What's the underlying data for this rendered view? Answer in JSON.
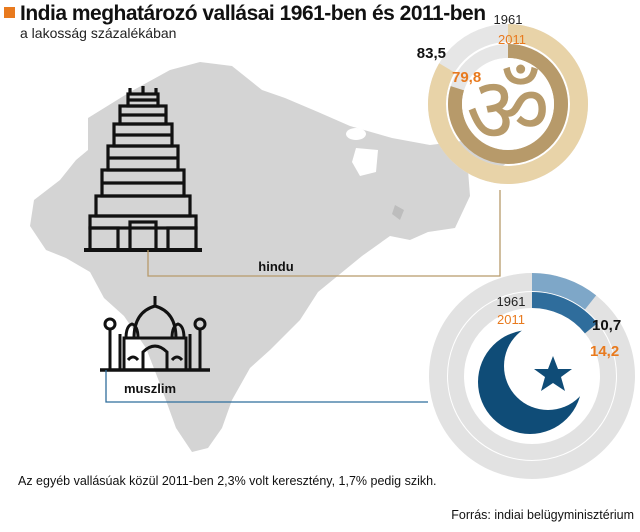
{
  "header": {
    "title": "India meghatározó vallásai 1961-ben és 2011-ben",
    "subtitle": "a lakosság százalékában"
  },
  "footnote": "Az egyéb vallásúak közül 2011-ben 2,3% volt keresztény, 1,7% pedig szikh.",
  "source": "Forrás: indiai belügyminisztérium",
  "colors": {
    "accent": "#e87a1e",
    "hindu_1961": "#e8d3a8",
    "hindu_2011": "#b79a6a",
    "muslim_1961": "#7ea7c8",
    "muslim_2011": "#2f6d9c",
    "muslim_icon": "#0f4c77",
    "ring_bg": "#e2e2e2",
    "map": "#d4d4d4"
  },
  "chart_data": [
    {
      "type": "donut",
      "name": "hindu",
      "label": "hindu",
      "year_labels": [
        "1961",
        "2011"
      ],
      "series": [
        {
          "year": "1961",
          "value": 83.5,
          "value_label": "83,5"
        },
        {
          "year": "2011",
          "value": 79.8,
          "value_label": "79,8"
        }
      ],
      "unit": "%",
      "icon": "om-icon"
    },
    {
      "type": "donut",
      "name": "muszlim",
      "label": "muszlim",
      "year_labels": [
        "1961",
        "2011"
      ],
      "series": [
        {
          "year": "1961",
          "value": 10.7,
          "value_label": "10,7"
        },
        {
          "year": "2011",
          "value": 14.2,
          "value_label": "14,2"
        }
      ],
      "unit": "%",
      "icon": "crescent-star-icon"
    }
  ]
}
